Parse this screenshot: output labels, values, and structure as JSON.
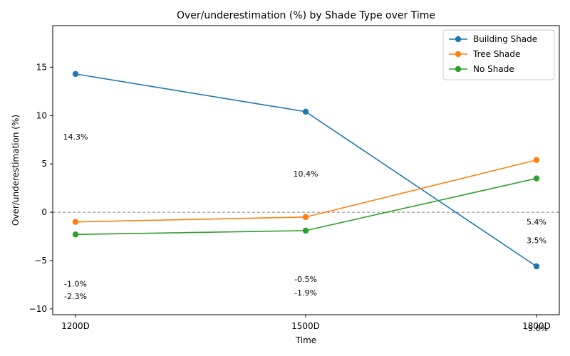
{
  "chart_data": {
    "type": "line",
    "title": "Over/underestimation (%) by Shade Type over Time",
    "xlabel": "Time",
    "ylabel": "Over/underestimation (%)",
    "categories": [
      "1200D",
      "1500D",
      "1800D"
    ],
    "ylim": [
      -10.6,
      19.3
    ],
    "yticks": [
      -10,
      -5,
      0,
      5,
      10,
      15
    ],
    "ytick_labels": [
      "−10",
      "−5",
      "0",
      "5",
      "10",
      "15"
    ],
    "reference_line": {
      "y": 0,
      "style": "dashed",
      "color": "#808080"
    },
    "legend": {
      "position": "top-right"
    },
    "grid": false,
    "series": [
      {
        "name": "Building Shade",
        "color": "#1f77b4",
        "values": [
          14.3,
          10.4,
          -5.6
        ],
        "labels": [
          "14.3%",
          "10.4%",
          "-5.6%"
        ],
        "label_y": [
          7.8,
          4.0,
          -12.0
        ]
      },
      {
        "name": "Tree Shade",
        "color": "#ff7f0e",
        "values": [
          -1.0,
          -0.5,
          5.4
        ],
        "labels": [
          "-1.0%",
          "-0.5%",
          "5.4%"
        ],
        "label_y": [
          -7.4,
          -6.9,
          -1.0
        ]
      },
      {
        "name": "No Shade",
        "color": "#2ca02c",
        "values": [
          -2.3,
          -1.9,
          3.5
        ],
        "labels": [
          "-2.3%",
          "-1.9%",
          "3.5%"
        ],
        "label_y": [
          -8.7,
          -8.3,
          -2.9
        ]
      }
    ]
  }
}
